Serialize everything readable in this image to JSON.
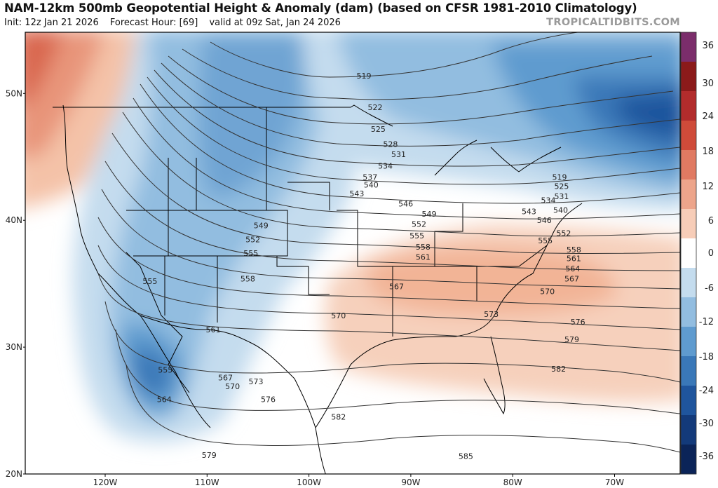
{
  "header": {
    "title": "NAM-12km 500mb Geopotential Height & Anomaly (dam) (based on CFSR 1981-2010 Climatology)",
    "init": "Init: 12z Jan 21 2026",
    "forecast_hour": "Forecast Hour: [69]",
    "valid": "valid at 09z Sat, Jan 24 2026",
    "brand": "TROPICALTIDBITS.COM"
  },
  "axes": {
    "lon_labels": [
      "120W",
      "110W",
      "100W",
      "90W",
      "80W",
      "70W"
    ],
    "lat_labels": [
      "50N",
      "40N",
      "30N",
      "20N"
    ]
  },
  "colorbar": {
    "labels": [
      "36",
      "30",
      "24",
      "18",
      "12",
      "6",
      "0",
      "-6",
      "-12",
      "-18",
      "-24",
      "-30",
      "-36"
    ],
    "colors": [
      "#7b2d6b",
      "#8b1a1a",
      "#b22c2c",
      "#cf4b3a",
      "#e07a62",
      "#eda58b",
      "#f7cdb8",
      "#ffffff",
      "#c4dcee",
      "#92bde0",
      "#5f9bcf",
      "#3a78b8",
      "#1f559d",
      "#133a7a",
      "#0b2458"
    ]
  },
  "contour_labels": [
    {
      "text": "519",
      "lon": -94.6,
      "lat": 51.4
    },
    {
      "text": "522",
      "lon": -93.5,
      "lat": 48.9
    },
    {
      "text": "525",
      "lon": -93.2,
      "lat": 47.2
    },
    {
      "text": "528",
      "lon": -92.0,
      "lat": 46.0
    },
    {
      "text": "531",
      "lon": -91.2,
      "lat": 45.2
    },
    {
      "text": "534",
      "lon": -92.5,
      "lat": 44.3
    },
    {
      "text": "537",
      "lon": -94.0,
      "lat": 43.4
    },
    {
      "text": "540",
      "lon": -93.9,
      "lat": 42.8
    },
    {
      "text": "543",
      "lon": -95.3,
      "lat": 42.1
    },
    {
      "text": "546",
      "lon": -90.5,
      "lat": 41.3
    },
    {
      "text": "549",
      "lon": -88.2,
      "lat": 40.5
    },
    {
      "text": "552",
      "lon": -89.2,
      "lat": 39.7
    },
    {
      "text": "555",
      "lon": -89.4,
      "lat": 38.8
    },
    {
      "text": "558",
      "lon": -88.8,
      "lat": 37.9
    },
    {
      "text": "561",
      "lon": -88.8,
      "lat": 37.1
    },
    {
      "text": "567",
      "lon": -91.4,
      "lat": 34.8
    },
    {
      "text": "570",
      "lon": -97.1,
      "lat": 32.5
    },
    {
      "text": "573",
      "lon": -82.1,
      "lat": 32.6
    },
    {
      "text": "576",
      "lon": -73.6,
      "lat": 32.0
    },
    {
      "text": "579",
      "lon": -74.2,
      "lat": 30.6
    },
    {
      "text": "582",
      "lon": -75.5,
      "lat": 28.3
    },
    {
      "text": "585",
      "lon": -84.6,
      "lat": 21.4
    },
    {
      "text": "582",
      "lon": -97.1,
      "lat": 24.5
    },
    {
      "text": "579",
      "lon": -109.8,
      "lat": 21.5
    },
    {
      "text": "576",
      "lon": -104.0,
      "lat": 25.9
    },
    {
      "text": "573",
      "lon": -105.2,
      "lat": 27.3
    },
    {
      "text": "570",
      "lon": -107.5,
      "lat": 26.9
    },
    {
      "text": "567",
      "lon": -108.2,
      "lat": 27.6
    },
    {
      "text": "564",
      "lon": -114.2,
      "lat": 25.9
    },
    {
      "text": "561",
      "lon": -109.4,
      "lat": 31.4
    },
    {
      "text": "555",
      "lon": -114.1,
      "lat": 28.2
    },
    {
      "text": "555",
      "lon": -115.6,
      "lat": 35.2
    },
    {
      "text": "558",
      "lon": -106.0,
      "lat": 35.4
    },
    {
      "text": "555",
      "lon": -105.7,
      "lat": 37.4
    },
    {
      "text": "552",
      "lon": -105.5,
      "lat": 38.5
    },
    {
      "text": "549",
      "lon": -104.7,
      "lat": 39.6
    },
    {
      "text": "519",
      "lon": -75.4,
      "lat": 43.4
    },
    {
      "text": "525",
      "lon": -75.2,
      "lat": 42.7
    },
    {
      "text": "531",
      "lon": -75.2,
      "lat": 41.9
    },
    {
      "text": "534",
      "lon": -76.5,
      "lat": 41.6
    },
    {
      "text": "540",
      "lon": -75.3,
      "lat": 40.8
    },
    {
      "text": "543",
      "lon": -78.4,
      "lat": 40.7
    },
    {
      "text": "546",
      "lon": -76.9,
      "lat": 40.0
    },
    {
      "text": "552",
      "lon": -75.0,
      "lat": 39.0
    },
    {
      "text": "555",
      "lon": -76.8,
      "lat": 38.4
    },
    {
      "text": "558",
      "lon": -74.0,
      "lat": 37.7
    },
    {
      "text": "561",
      "lon": -74.0,
      "lat": 37.0
    },
    {
      "text": "564",
      "lon": -74.1,
      "lat": 36.2
    },
    {
      "text": "567",
      "lon": -74.2,
      "lat": 35.4
    },
    {
      "text": "570",
      "lon": -76.6,
      "lat": 34.4
    }
  ]
}
